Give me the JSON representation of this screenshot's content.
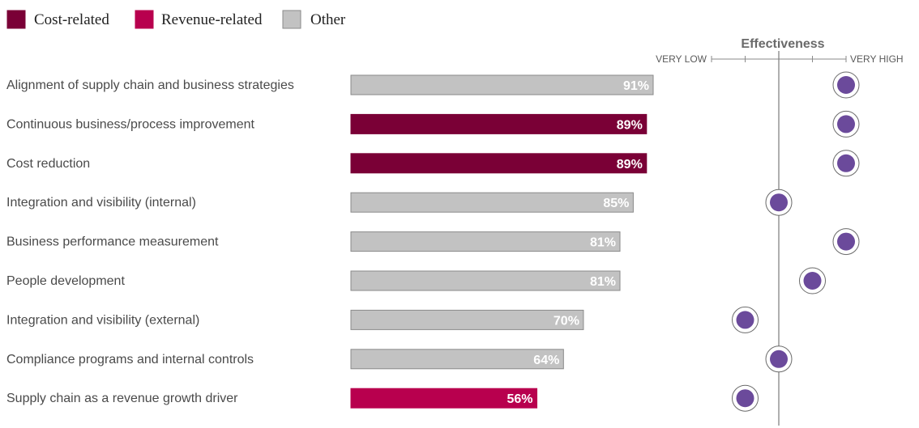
{
  "chart_data": {
    "type": "bar",
    "legend": [
      {
        "key": "cost",
        "label": "Cost-related",
        "color": "#7a0036"
      },
      {
        "key": "revenue",
        "label": "Revenue-related",
        "color": "#b8004e"
      },
      {
        "key": "other",
        "label": "Other",
        "color": "#c2c2c2"
      }
    ],
    "categories": [
      "Alignment of supply chain and business strategies",
      "Continuous business/process improvement",
      "Cost reduction",
      "Integration and visibility (internal)",
      "Business performance measurement",
      "People development",
      "Integration and visibility (external)",
      "Compliance programs and internal controls",
      "Supply chain as a revenue growth driver"
    ],
    "values": [
      91,
      89,
      89,
      85,
      81,
      81,
      70,
      64,
      56
    ],
    "value_labels": [
      "91%",
      "89%",
      "89%",
      "85%",
      "81%",
      "81%",
      "70%",
      "64%",
      "56%"
    ],
    "groups": [
      "other",
      "cost",
      "cost",
      "other",
      "other",
      "other",
      "other",
      "other",
      "revenue"
    ],
    "xlim": [
      0,
      100
    ],
    "effectiveness": {
      "title": "Effectiveness",
      "low_label": "VERY LOW",
      "high_label": "VERY HIGH",
      "levels": 5,
      "ratings": [
        5,
        5,
        5,
        3,
        5,
        4,
        2,
        3,
        2
      ],
      "dot_color": "#6b4a9b"
    }
  }
}
